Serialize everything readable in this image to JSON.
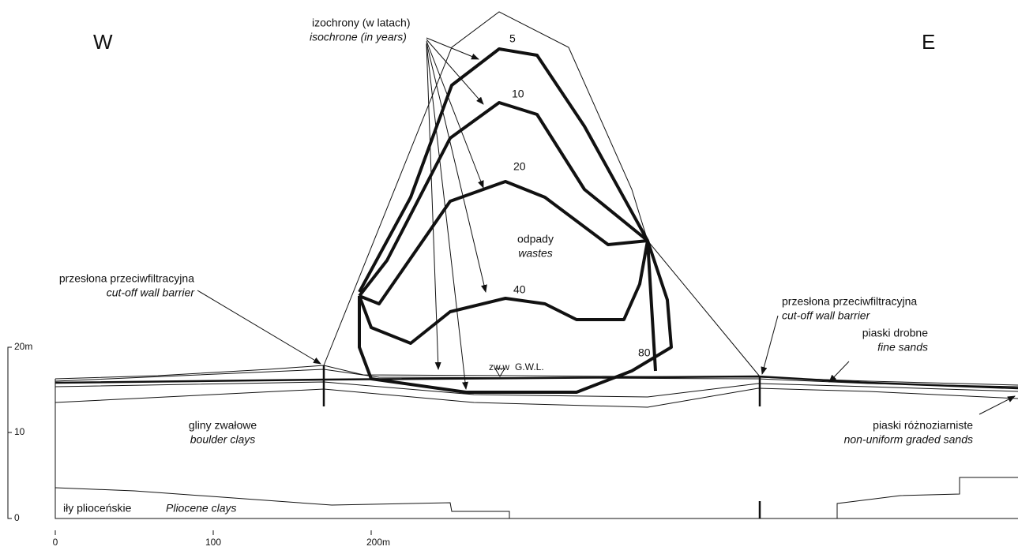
{
  "directions": {
    "west": "W",
    "east": "E"
  },
  "isochrones_label": {
    "pl": "izochrony (w latach)",
    "en": "isochrone (in years)"
  },
  "isochrone_values": [
    "5",
    "10",
    "20",
    "40",
    "80"
  ],
  "wastes": {
    "pl": "odpady",
    "en": "wastes"
  },
  "cutoff_left": {
    "pl": "przesłona przeciwfiltracyjna",
    "en": "cut-off wall barrier"
  },
  "cutoff_right": {
    "pl": "przesłona przeciwfiltracyjna",
    "en": "cut-off wall barrier"
  },
  "fine_sands": {
    "pl": "piaski drobne",
    "en": "fine sands"
  },
  "graded_sands": {
    "pl": "piaski różnoziarniste",
    "en": "non-uniform graded sands"
  },
  "boulder_clays": {
    "pl": "gliny zwałowe",
    "en": "boulder clays"
  },
  "pliocene_clays": {
    "pl": "iły plioceńskie",
    "en": "Pliocene clays"
  },
  "gwl": {
    "pl": "zw.w",
    "en": "G.W.L."
  },
  "vertical_scale": [
    "20m",
    "10",
    "0"
  ],
  "horizontal_scale": [
    "0",
    "100",
    "200m"
  ]
}
